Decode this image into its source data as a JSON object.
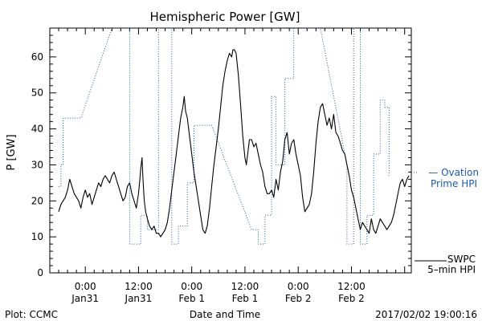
{
  "chart_data": {
    "type": "line",
    "title": "Hemispheric Power [GW]",
    "ylabel": "P [GW]",
    "xlabel": "Date and Time",
    "ylim": [
      0,
      68
    ],
    "xlim_hours": [
      -8,
      17
    ],
    "yticks": [
      0,
      10,
      20,
      30,
      40,
      50,
      60
    ],
    "xticks": [
      {
        "h": 0,
        "time": "0:00",
        "date": "Jan31"
      },
      {
        "h": 12,
        "time": "12:00",
        "date": "Jan31"
      },
      {
        "h": 24,
        "time": "0:00",
        "date": "Feb 1"
      },
      {
        "h": 36,
        "time": "12:00",
        "date": "Feb 1"
      },
      {
        "h": 48,
        "time": "0:00",
        "date": "Feb 2"
      },
      {
        "h": 60,
        "time": "12:00",
        "date": "Feb 2"
      }
    ],
    "series": [
      {
        "name": "SWPC 5-min HPI",
        "label_lines": [
          "SWPC",
          "5–min HPI"
        ],
        "color": "#000000",
        "style": "solid",
        "points": [
          [
            -6.0,
            17
          ],
          [
            -5.5,
            19
          ],
          [
            -5.0,
            20
          ],
          [
            -4.5,
            21
          ],
          [
            -4.0,
            23
          ],
          [
            -3.5,
            26
          ],
          [
            -3.0,
            24
          ],
          [
            -2.5,
            22
          ],
          [
            -2.0,
            21
          ],
          [
            -1.5,
            20
          ],
          [
            -1.0,
            18
          ],
          [
            -0.5,
            21
          ],
          [
            0.0,
            23
          ],
          [
            0.5,
            21
          ],
          [
            1.0,
            22
          ],
          [
            1.5,
            19
          ],
          [
            2.0,
            21
          ],
          [
            2.5,
            23
          ],
          [
            3.0,
            25
          ],
          [
            3.5,
            24
          ],
          [
            4.0,
            26
          ],
          [
            4.5,
            27
          ],
          [
            5.0,
            26
          ],
          [
            5.5,
            25
          ],
          [
            6.0,
            27
          ],
          [
            6.5,
            28
          ],
          [
            7.0,
            26
          ],
          [
            7.5,
            24
          ],
          [
            8.0,
            22
          ],
          [
            8.5,
            20
          ],
          [
            9.0,
            21
          ],
          [
            9.5,
            24
          ],
          [
            10.0,
            25
          ],
          [
            10.5,
            22
          ],
          [
            11.0,
            20
          ],
          [
            11.5,
            18
          ],
          [
            12.0,
            22
          ],
          [
            12.3,
            26
          ],
          [
            12.5,
            29
          ],
          [
            12.8,
            32
          ],
          [
            13.0,
            26
          ],
          [
            13.3,
            20
          ],
          [
            13.6,
            17
          ],
          [
            14.0,
            15
          ],
          [
            14.5,
            13
          ],
          [
            15.0,
            12
          ],
          [
            15.5,
            13
          ],
          [
            16.0,
            11
          ],
          [
            16.5,
            11
          ],
          [
            17.0,
            10
          ],
          [
            17.5,
            11
          ],
          [
            18.0,
            12
          ],
          [
            18.5,
            14
          ],
          [
            19.0,
            18
          ],
          [
            19.5,
            23
          ],
          [
            20.0,
            28
          ],
          [
            20.5,
            33
          ],
          [
            21.0,
            38
          ],
          [
            21.5,
            43
          ],
          [
            22.0,
            46
          ],
          [
            22.3,
            49
          ],
          [
            22.6,
            45
          ],
          [
            23.0,
            43
          ],
          [
            23.5,
            38
          ],
          [
            24.0,
            33
          ],
          [
            24.5,
            28
          ],
          [
            25.0,
            24
          ],
          [
            25.5,
            20
          ],
          [
            26.0,
            16
          ],
          [
            26.5,
            12
          ],
          [
            27.0,
            11
          ],
          [
            27.5,
            13
          ],
          [
            28.0,
            18
          ],
          [
            28.5,
            24
          ],
          [
            29.0,
            30
          ],
          [
            29.5,
            35
          ],
          [
            30.0,
            40
          ],
          [
            30.5,
            46
          ],
          [
            31.0,
            52
          ],
          [
            31.5,
            56
          ],
          [
            32.0,
            59
          ],
          [
            32.5,
            61
          ],
          [
            33.0,
            60
          ],
          [
            33.3,
            62
          ],
          [
            33.6,
            62
          ],
          [
            34.0,
            61
          ],
          [
            34.5,
            55
          ],
          [
            35.0,
            47
          ],
          [
            35.5,
            38
          ],
          [
            36.0,
            32
          ],
          [
            36.3,
            30
          ],
          [
            36.6,
            33
          ],
          [
            37.0,
            37
          ],
          [
            37.5,
            37
          ],
          [
            38.0,
            35
          ],
          [
            38.5,
            36
          ],
          [
            39.0,
            33
          ],
          [
            39.5,
            30
          ],
          [
            40.0,
            28
          ],
          [
            40.5,
            24
          ],
          [
            41.0,
            22
          ],
          [
            41.5,
            22
          ],
          [
            42.0,
            23
          ],
          [
            42.5,
            21
          ],
          [
            43.0,
            26
          ],
          [
            43.5,
            23
          ],
          [
            44.0,
            28
          ],
          [
            44.5,
            31
          ],
          [
            45.0,
            37
          ],
          [
            45.5,
            39
          ],
          [
            46.0,
            33
          ],
          [
            46.5,
            36
          ],
          [
            47.0,
            37
          ],
          [
            47.5,
            33
          ],
          [
            48.0,
            30
          ],
          [
            48.5,
            27
          ],
          [
            49.0,
            21
          ],
          [
            49.5,
            17
          ],
          [
            50.0,
            18
          ],
          [
            50.5,
            19
          ],
          [
            51.0,
            22
          ],
          [
            51.5,
            28
          ],
          [
            52.0,
            36
          ],
          [
            52.5,
            42
          ],
          [
            53.0,
            46
          ],
          [
            53.5,
            47
          ],
          [
            54.0,
            44
          ],
          [
            54.5,
            41
          ],
          [
            55.0,
            43
          ],
          [
            55.5,
            40
          ],
          [
            56.0,
            44
          ],
          [
            56.5,
            39
          ],
          [
            57.0,
            38
          ],
          [
            57.5,
            36
          ],
          [
            58.0,
            34
          ],
          [
            58.5,
            33
          ],
          [
            59.0,
            30
          ],
          [
            59.5,
            27
          ],
          [
            60.0,
            23
          ],
          [
            60.5,
            21
          ],
          [
            61.0,
            18
          ],
          [
            61.5,
            15
          ],
          [
            62.0,
            12
          ],
          [
            62.5,
            14
          ],
          [
            63.0,
            13
          ],
          [
            63.5,
            12
          ],
          [
            64.0,
            11
          ],
          [
            64.5,
            15
          ],
          [
            65.0,
            12
          ],
          [
            65.5,
            11
          ],
          [
            66.0,
            13
          ],
          [
            66.5,
            15
          ],
          [
            67.0,
            14
          ],
          [
            67.5,
            13
          ],
          [
            68.0,
            12
          ],
          [
            68.5,
            13
          ],
          [
            69.0,
            14
          ],
          [
            69.5,
            16
          ],
          [
            70.0,
            19
          ],
          [
            70.5,
            22
          ],
          [
            71.0,
            25
          ],
          [
            71.5,
            26
          ],
          [
            72.0,
            24
          ],
          [
            72.5,
            26
          ],
          [
            73.0,
            27
          ]
        ]
      },
      {
        "name": "Ovation Prime HPI",
        "label_lines": [
          "— Ovation",
          "Prime HPI"
        ],
        "color": "#1f5aa6",
        "style": "dotted",
        "points": [
          [
            -6.0,
            24
          ],
          [
            -5.5,
            24
          ],
          [
            -5.5,
            30
          ],
          [
            -5.0,
            30
          ],
          [
            -5.0,
            43
          ],
          [
            -1.0,
            43
          ],
          [
            6.0,
            68
          ],
          [
            10.0,
            68
          ],
          [
            10.0,
            8
          ],
          [
            12.5,
            8
          ],
          [
            12.5,
            16
          ],
          [
            14.0,
            16
          ],
          [
            14.0,
            12
          ],
          [
            16.5,
            12
          ],
          [
            16.5,
            68
          ],
          [
            19.5,
            68
          ],
          [
            19.5,
            8
          ],
          [
            21.0,
            8
          ],
          [
            21.0,
            13
          ],
          [
            23.0,
            13
          ],
          [
            23.0,
            25
          ],
          [
            24.5,
            25
          ],
          [
            24.5,
            41
          ],
          [
            28.5,
            41
          ],
          [
            37.5,
            12
          ],
          [
            39.0,
            12
          ],
          [
            39.0,
            8
          ],
          [
            40.5,
            8
          ],
          [
            40.5,
            16
          ],
          [
            42.0,
            16
          ],
          [
            42.0,
            49
          ],
          [
            43.0,
            49
          ],
          [
            43.0,
            30
          ],
          [
            45.0,
            30
          ],
          [
            45.0,
            54
          ],
          [
            47.0,
            54
          ],
          [
            47.0,
            68
          ],
          [
            53.0,
            68
          ],
          [
            59.0,
            30
          ],
          [
            59.0,
            8
          ],
          [
            60.5,
            8
          ],
          [
            60.5,
            68
          ],
          [
            62.0,
            68
          ],
          [
            62.0,
            8
          ],
          [
            63.5,
            8
          ],
          [
            63.5,
            16
          ],
          [
            65.0,
            16
          ],
          [
            65.0,
            33
          ],
          [
            66.5,
            33
          ],
          [
            66.5,
            48
          ],
          [
            67.5,
            48
          ],
          [
            67.5,
            46
          ],
          [
            68.5,
            46
          ],
          [
            68.5,
            27
          ]
        ]
      }
    ]
  },
  "footer": {
    "plot_credit": "Plot: CCMC",
    "timestamp": "2017/02/02 19:00:16"
  }
}
